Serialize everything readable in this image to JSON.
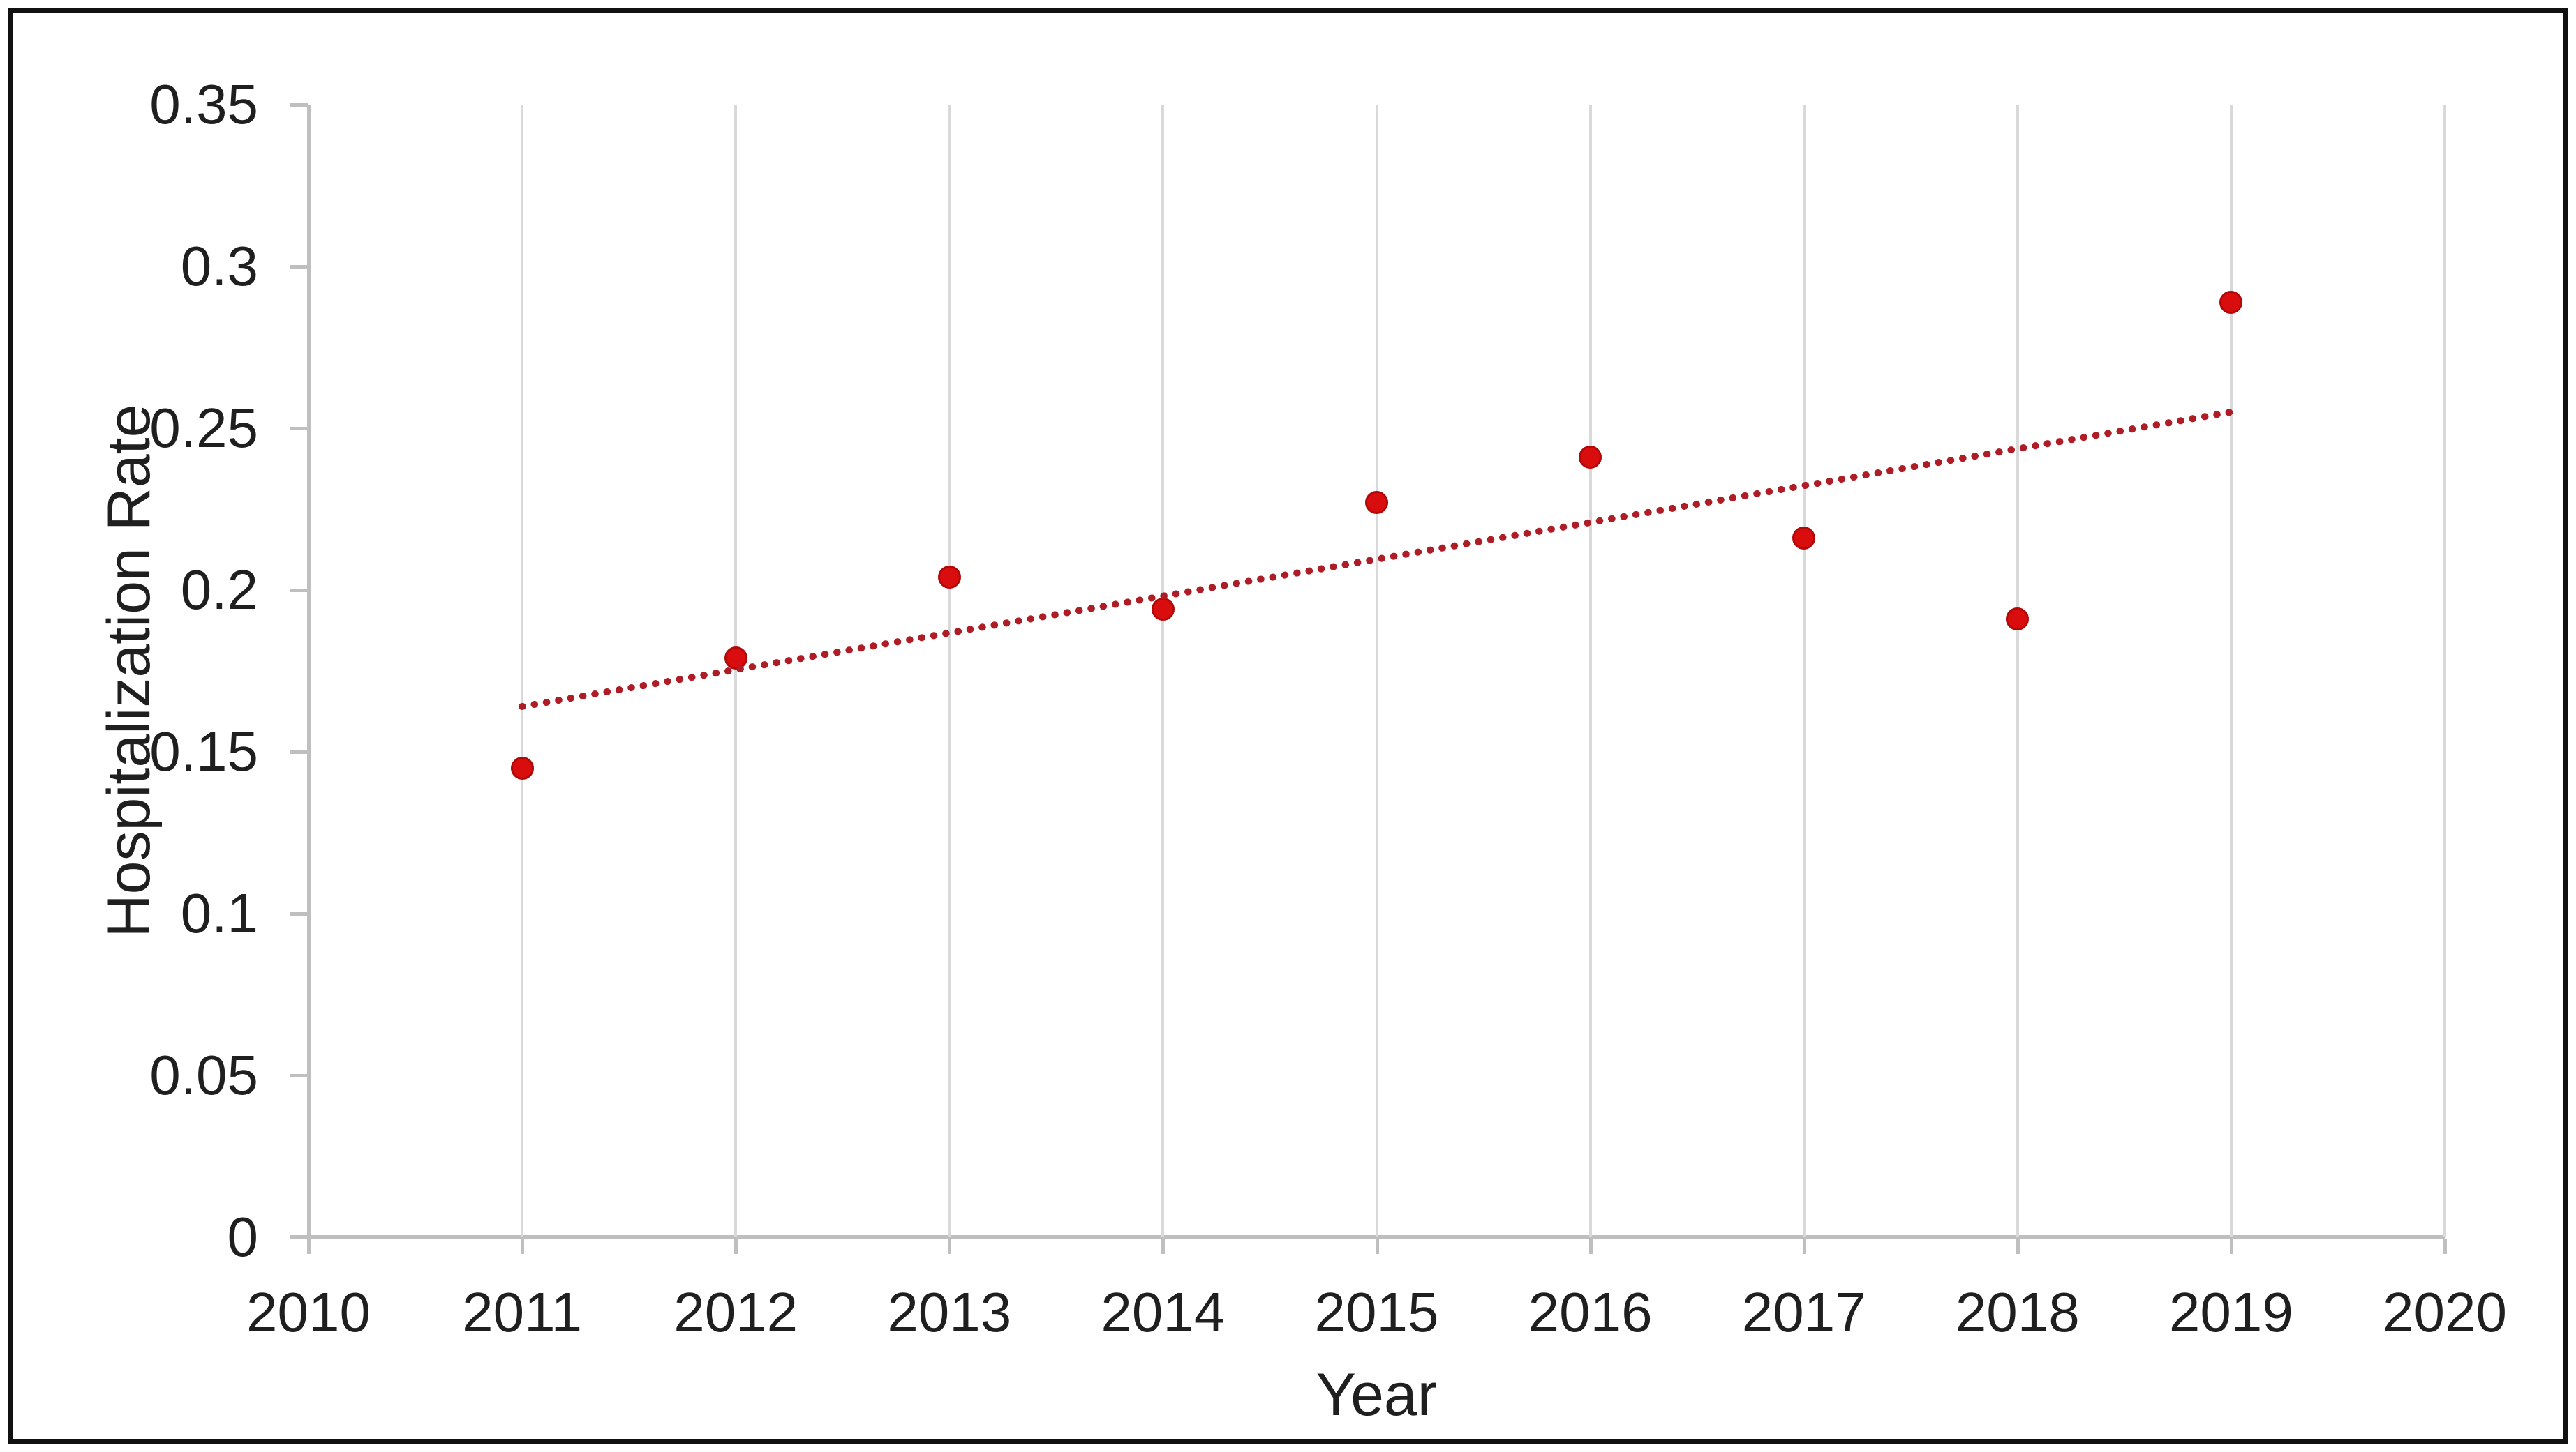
{
  "figure": {
    "background": "#FFFFFF",
    "border_color": "#111111"
  },
  "chart_data": {
    "type": "scatter",
    "title": "",
    "xlabel": "Year",
    "ylabel": "Hospitalization Rate",
    "xlim": [
      2010,
      2020
    ],
    "ylim": [
      0,
      0.35
    ],
    "legend": "none",
    "gridlines": {
      "vertical": true,
      "horizontal": false,
      "color": "#D9D9D9"
    },
    "axis_color": "#BFBFBF",
    "text_color": "#1F1F1F",
    "x_ticks": [
      {
        "value": 2010,
        "label": "2010"
      },
      {
        "value": 2011,
        "label": "2011"
      },
      {
        "value": 2012,
        "label": "2012"
      },
      {
        "value": 2013,
        "label": "2013"
      },
      {
        "value": 2014,
        "label": "2014"
      },
      {
        "value": 2015,
        "label": "2015"
      },
      {
        "value": 2016,
        "label": "2016"
      },
      {
        "value": 2017,
        "label": "2017"
      },
      {
        "value": 2018,
        "label": "2018"
      },
      {
        "value": 2019,
        "label": "2019"
      },
      {
        "value": 2020,
        "label": "2020"
      }
    ],
    "y_ticks": [
      {
        "value": 0,
        "label": "0"
      },
      {
        "value": 0.05,
        "label": "0.05"
      },
      {
        "value": 0.1,
        "label": "0.1"
      },
      {
        "value": 0.15,
        "label": "0.15"
      },
      {
        "value": 0.2,
        "label": "0.2"
      },
      {
        "value": 0.25,
        "label": "0.25"
      },
      {
        "value": 0.3,
        "label": "0.3"
      },
      {
        "value": 0.35,
        "label": "0.35"
      }
    ],
    "series": [
      {
        "name": "Hospitalization Rate",
        "marker_color": "#D90D0D",
        "marker_edge_color": "#B30808",
        "points": [
          {
            "x": 2011,
            "y": 0.145
          },
          {
            "x": 2012,
            "y": 0.179
          },
          {
            "x": 2013,
            "y": 0.204
          },
          {
            "x": 2014,
            "y": 0.194
          },
          {
            "x": 2015,
            "y": 0.227
          },
          {
            "x": 2016,
            "y": 0.241
          },
          {
            "x": 2017,
            "y": 0.216
          },
          {
            "x": 2018,
            "y": 0.191
          },
          {
            "x": 2019,
            "y": 0.289
          }
        ]
      }
    ],
    "trendline": {
      "type": "linear",
      "style": "dotted",
      "color": "#AE1C26",
      "x1": 2011,
      "y1": 0.164,
      "x2": 2019,
      "y2": 0.255
    }
  }
}
